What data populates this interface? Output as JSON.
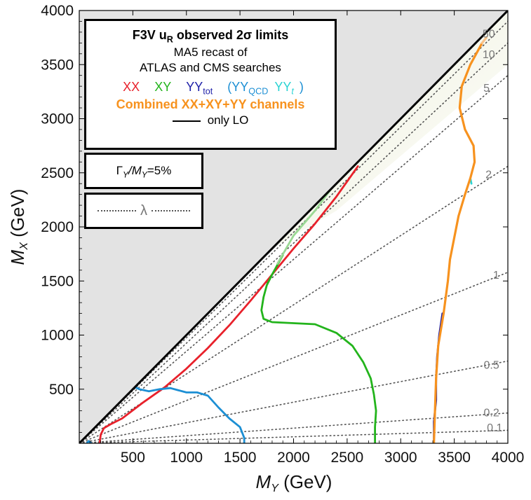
{
  "chart_data": {
    "type": "line",
    "title": "F3V u_R observed 2σ limits",
    "xlabel": "M_Y (GeV)",
    "ylabel": "M_X (GeV)",
    "xlim": [
      0,
      4000
    ],
    "ylim": [
      0,
      4000
    ],
    "x_ticks": [
      500,
      1000,
      1500,
      2000,
      2500,
      3000,
      3500,
      4000
    ],
    "y_ticks": [
      500,
      1000,
      1500,
      2000,
      2500,
      3000,
      3500,
      4000
    ],
    "excluded_region": "M_X > M_Y (shaded gray)",
    "lambda_contours": [
      {
        "label": "0.1",
        "slope": 0.03
      },
      {
        "label": "0.2",
        "slope": 0.07
      },
      {
        "label": "0.5",
        "slope": 0.19
      },
      {
        "label": "1",
        "slope": 0.395
      },
      {
        "label": "2",
        "slope": 0.64
      },
      {
        "label": "5",
        "slope": 0.85
      },
      {
        "label": "10",
        "slope": 0.925
      },
      {
        "label": "50",
        "slope": 0.975
      }
    ],
    "series": [
      {
        "name": "XX",
        "color": "#e8212b",
        "points": [
          [
            190,
            0
          ],
          [
            200,
            80
          ],
          [
            230,
            140
          ],
          [
            300,
            180
          ],
          [
            400,
            230
          ],
          [
            600,
            380
          ],
          [
            800,
            520
          ],
          [
            1000,
            690
          ],
          [
            1200,
            880
          ],
          [
            1400,
            1090
          ],
          [
            1600,
            1320
          ],
          [
            1800,
            1560
          ],
          [
            2000,
            1800
          ],
          [
            2200,
            2030
          ],
          [
            2400,
            2280
          ],
          [
            2600,
            2560
          ]
        ]
      },
      {
        "name": "XY",
        "color": "#23b41c",
        "points": [
          [
            1900,
            1740
          ],
          [
            1850,
            1650
          ],
          [
            1800,
            1560
          ],
          [
            1750,
            1460
          ],
          [
            1720,
            1350
          ],
          [
            1700,
            1230
          ],
          [
            1720,
            1150
          ],
          [
            1800,
            1120
          ],
          [
            2000,
            1110
          ],
          [
            2200,
            1100
          ],
          [
            2400,
            1020
          ],
          [
            2550,
            900
          ],
          [
            2650,
            750
          ],
          [
            2720,
            600
          ],
          [
            2750,
            450
          ],
          [
            2770,
            300
          ],
          [
            2760,
            150
          ],
          [
            2760,
            0
          ]
        ]
      },
      {
        "name": "XY (upper, faded)",
        "color": "#9ad994",
        "points": [
          [
            1850,
            1660
          ],
          [
            2000,
            1920
          ],
          [
            2200,
            2150
          ],
          [
            2350,
            2350
          ]
        ]
      },
      {
        "name": "YY_QCD",
        "color": "#1c8fd4",
        "points": [
          [
            520,
            520
          ],
          [
            560,
            500
          ],
          [
            650,
            480
          ],
          [
            750,
            500
          ],
          [
            850,
            510
          ],
          [
            1000,
            470
          ],
          [
            1100,
            470
          ],
          [
            1200,
            440
          ],
          [
            1300,
            330
          ],
          [
            1400,
            230
          ],
          [
            1500,
            150
          ],
          [
            1540,
            50
          ],
          [
            1540,
            0
          ]
        ]
      },
      {
        "name": "YY_QCD (low)",
        "color": "#1c8fd4",
        "points": [
          [
            70,
            0
          ],
          [
            90,
            20
          ],
          [
            110,
            0
          ]
        ]
      },
      {
        "name": "YY_tot",
        "color": "#1d1fa8",
        "points": [
          [
            3310,
            0
          ],
          [
            3310,
            200
          ],
          [
            3330,
            400
          ],
          [
            3330,
            600
          ],
          [
            3340,
            800
          ],
          [
            3360,
            1000
          ],
          [
            3390,
            1200
          ]
        ]
      },
      {
        "name": "YY_t",
        "color": "#2bd3d3",
        "points": [
          [
            3650,
            2450
          ],
          [
            3660,
            2400
          ]
        ]
      },
      {
        "name": "Combined",
        "color": "#f7921e",
        "points": [
          [
            3310,
            0
          ],
          [
            3320,
            300
          ],
          [
            3330,
            600
          ],
          [
            3350,
            900
          ],
          [
            3400,
            1200
          ],
          [
            3440,
            1500
          ],
          [
            3460,
            1700
          ],
          [
            3500,
            1900
          ],
          [
            3540,
            2100
          ],
          [
            3600,
            2300
          ],
          [
            3650,
            2450
          ],
          [
            3690,
            2600
          ],
          [
            3680,
            2750
          ],
          [
            3600,
            2900
          ],
          [
            3550,
            3100
          ],
          [
            3570,
            3300
          ],
          [
            3650,
            3500
          ],
          [
            3760,
            3700
          ]
        ]
      },
      {
        "name": "Combined (faded top)",
        "color": "#f9c28a",
        "points": [
          [
            3760,
            3700
          ],
          [
            3800,
            3750
          ]
        ]
      }
    ],
    "legend": {
      "title_main": "F3V u",
      "title_sub": "R",
      "title_rest": " observed 2σ limits",
      "line2": "MA5 recast of",
      "line3": "ATLAS and CMS searches",
      "xx": "XX",
      "xy": "XY",
      "yy_tot": "YY",
      "yy_tot_sub": "tot",
      "yy_qcd_open": "(YY",
      "yy_qcd_sub": "QCD",
      "yy_t": "YY",
      "yy_t_sub": "t",
      "yy_t_close": ")",
      "combined": "Combined XX+XY+YY channels",
      "lo": "only LO",
      "width_main": "Γ",
      "width_sub1": "Y",
      "width_mid": "/M",
      "width_sub2": "Y",
      "width_val": "=5%",
      "lambda": "λ"
    },
    "colors": {
      "XX": "#e8212b",
      "XY": "#23b41c",
      "YY_tot": "#1d1fa8",
      "YY_QCD": "#1c8fd4",
      "YY_t": "#2bd3d3",
      "Combined": "#f7921e",
      "shade": "#e3e3e3"
    }
  }
}
